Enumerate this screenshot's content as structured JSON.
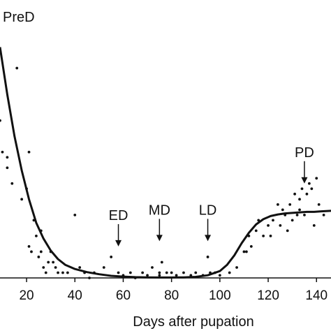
{
  "chart_data": {
    "type": "scatter",
    "panel_label": "PreD",
    "xlabel": "Days after pupation",
    "ylabel": "",
    "xlim": [
      9,
      146
    ],
    "ylim": [
      0,
      45
    ],
    "x_ticks": [
      20,
      40,
      60,
      80,
      100,
      120,
      140
    ],
    "y_ticks": [],
    "grid": false,
    "legend": "none",
    "colors": {
      "points": "#111111",
      "curve": "#111111",
      "axis": "#111111"
    },
    "annotations": [
      {
        "label": "ED",
        "x": 58,
        "y": 6
      },
      {
        "label": "MD",
        "x": 75,
        "y": 7
      },
      {
        "label": "LD",
        "x": 95,
        "y": 7
      },
      {
        "label": "PD",
        "x": 135,
        "y": 18
      }
    ],
    "series": [
      {
        "kind": "points",
        "x": [
          9,
          10,
          12,
          12,
          14,
          16,
          18,
          20,
          21,
          21,
          22,
          23,
          24,
          25,
          26,
          26,
          27,
          28,
          29,
          30,
          31,
          32,
          33,
          35,
          37,
          40,
          42,
          44,
          46,
          48,
          52,
          55,
          58,
          60,
          63,
          65,
          68,
          70,
          72,
          75,
          75,
          76,
          78,
          80,
          82,
          85,
          88,
          90,
          93,
          95,
          96,
          98,
          100,
          104,
          107,
          110,
          111,
          112,
          113,
          115,
          116,
          118,
          120,
          121,
          122,
          124,
          125,
          126,
          127,
          128,
          129,
          130,
          131,
          132,
          133,
          133,
          134,
          135,
          136,
          137,
          138,
          139,
          140,
          141,
          143
        ],
        "y": [
          30,
          24,
          23,
          21,
          18,
          40,
          15,
          17,
          24,
          6,
          5,
          11,
          8,
          4,
          9,
          5,
          2,
          1,
          3,
          5,
          3,
          2,
          1,
          1,
          1,
          12,
          2,
          1,
          0,
          1,
          2,
          4,
          1,
          0.5,
          1,
          0,
          1,
          0.5,
          2,
          1,
          0.5,
          3,
          1,
          1,
          0.5,
          1,
          0.5,
          1,
          0.5,
          4,
          1,
          1,
          0.5,
          1,
          2,
          5,
          5,
          8,
          6,
          9,
          11,
          8,
          10,
          8,
          11,
          14,
          10,
          13,
          12,
          9,
          14,
          11,
          16,
          12,
          13,
          15,
          17,
          12,
          16,
          18,
          17,
          10,
          19,
          14,
          12
        ]
      },
      {
        "kind": "curve",
        "x": [
          9,
          12,
          15,
          18,
          21,
          24,
          27,
          30,
          33,
          36,
          40,
          45,
          50,
          55,
          60,
          65,
          70,
          75,
          80,
          85,
          90,
          95,
          100,
          103,
          106,
          109,
          112,
          115,
          118,
          121,
          124,
          127,
          130,
          133,
          136,
          139,
          142,
          146
        ],
        "y": [
          44,
          35,
          27,
          20.5,
          15,
          10.5,
          7.5,
          5.2,
          3.6,
          2.5,
          1.7,
          1.1,
          0.7,
          0.4,
          0.25,
          0.15,
          0.1,
          0.08,
          0.08,
          0.1,
          0.2,
          0.5,
          1.3,
          2.5,
          4.3,
          6.6,
          8.6,
          10.2,
          11.2,
          11.8,
          12.1,
          12.3,
          12.4,
          12.5,
          12.6,
          12.6,
          12.7,
          12.8
        ]
      }
    ]
  }
}
